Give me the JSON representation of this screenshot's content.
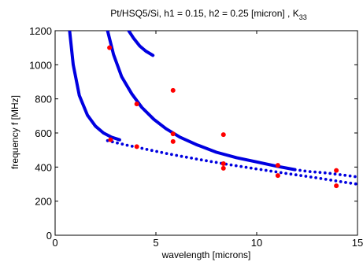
{
  "chart_data": {
    "type": "line",
    "title_main": "Pt/HSQ5/Si, h1 = 0.15, h2 = 0.25 [micron] , K",
    "title_sub": "33",
    "xlabel": "wavelength [microns]",
    "ylabel": "frequency   f [MHz]",
    "xlim": [
      0,
      15
    ],
    "ylim": [
      0,
      1200
    ],
    "x_ticks": [
      0,
      5,
      10,
      15
    ],
    "x_tick_labels": [
      "0",
      "5",
      "10",
      "15"
    ],
    "y_ticks": [
      0,
      200,
      400,
      600,
      800,
      1000,
      1200
    ],
    "y_tick_labels": [
      "0",
      "200",
      "400",
      "600",
      "800",
      "1000",
      "1200"
    ],
    "grid": false,
    "colors": {
      "curves": "#0000e0",
      "measured": "#ff0000"
    },
    "series": [
      {
        "style": "solid",
        "x": [
          0.72,
          0.9,
          1.2,
          1.6,
          2.0,
          2.4,
          2.8,
          3.2
        ],
        "y": [
          1200,
          1000,
          820,
          705,
          640,
          600,
          575,
          560
        ]
      },
      {
        "style": "dotted",
        "x": [
          2.6,
          3.5,
          4.5,
          5.5,
          6.5,
          7.5,
          8.5,
          9.5,
          10.5,
          11.5,
          12.5,
          13.5,
          14.5,
          15
        ],
        "y": [
          555,
          530,
          505,
          480,
          458,
          437,
          417,
          398,
          380,
          362,
          345,
          327,
          308,
          300
        ]
      },
      {
        "style": "solid",
        "x": [
          2.6,
          2.9,
          3.3,
          3.8,
          4.3,
          4.9,
          5.5,
          6.2,
          7.0,
          8.0,
          9.0,
          10.0,
          11.0,
          11.9
        ],
        "y": [
          1200,
          1060,
          930,
          830,
          750,
          680,
          625,
          575,
          532,
          487,
          455,
          430,
          405,
          385
        ]
      },
      {
        "style": "dotted",
        "x": [
          11.9,
          12.5,
          13.5,
          14.5,
          15
        ],
        "y": [
          385,
          375,
          365,
          350,
          342
        ]
      },
      {
        "style": "solid",
        "x": [
          3.65,
          3.9,
          4.2,
          4.5,
          4.85
        ],
        "y": [
          1200,
          1155,
          1110,
          1080,
          1055
        ]
      }
    ],
    "points": [
      {
        "x": 2.7,
        "y": 1100
      },
      {
        "x": 2.75,
        "y": 560
      },
      {
        "x": 4.05,
        "y": 770
      },
      {
        "x": 4.05,
        "y": 520
      },
      {
        "x": 5.85,
        "y": 850
      },
      {
        "x": 5.85,
        "y": 595
      },
      {
        "x": 5.85,
        "y": 550
      },
      {
        "x": 8.35,
        "y": 590
      },
      {
        "x": 8.35,
        "y": 420
      },
      {
        "x": 8.35,
        "y": 393
      },
      {
        "x": 11.05,
        "y": 410
      },
      {
        "x": 11.05,
        "y": 350
      },
      {
        "x": 13.95,
        "y": 380
      },
      {
        "x": 13.95,
        "y": 290
      }
    ]
  }
}
